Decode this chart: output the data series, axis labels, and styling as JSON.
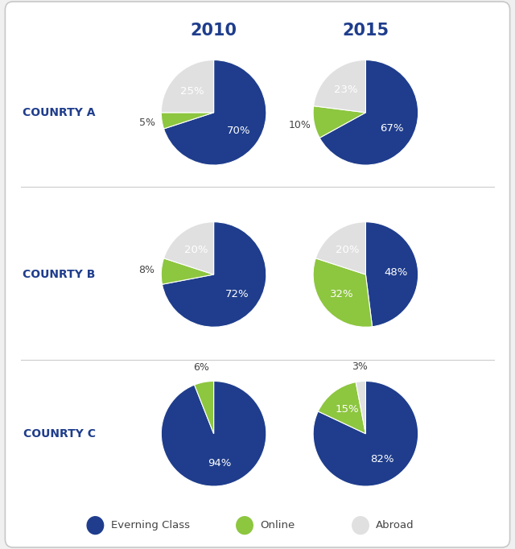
{
  "title_2010": "2010",
  "title_2015": "2015",
  "countries": [
    "COUNRTY A",
    "COUNRTY B",
    "COUNRTY C"
  ],
  "colors": {
    "evening": "#1f3d8c",
    "online": "#8dc63f",
    "abroad": "#e0e0e0"
  },
  "data_2010": [
    [
      70,
      5,
      25
    ],
    [
      72,
      8,
      20
    ],
    [
      94,
      6,
      0
    ]
  ],
  "data_2015": [
    [
      67,
      10,
      23
    ],
    [
      48,
      32,
      20
    ],
    [
      82,
      15,
      3
    ]
  ],
  "labels_2010": [
    [
      "70%",
      "5%",
      "25%"
    ],
    [
      "72%",
      "8%",
      "20%"
    ],
    [
      "94%",
      "6%",
      ""
    ]
  ],
  "labels_2015": [
    [
      "67%",
      "10%",
      "23%"
    ],
    [
      "48%",
      "32%",
      "20%"
    ],
    [
      "82%",
      "15%",
      "3%"
    ]
  ],
  "legend_labels": [
    "Everning Class",
    "Online",
    "Abroad"
  ],
  "year_color": "#1f3d8c",
  "country_label_color": "#1f3d8c",
  "text_white": "#ffffff",
  "text_dark": "#444444"
}
